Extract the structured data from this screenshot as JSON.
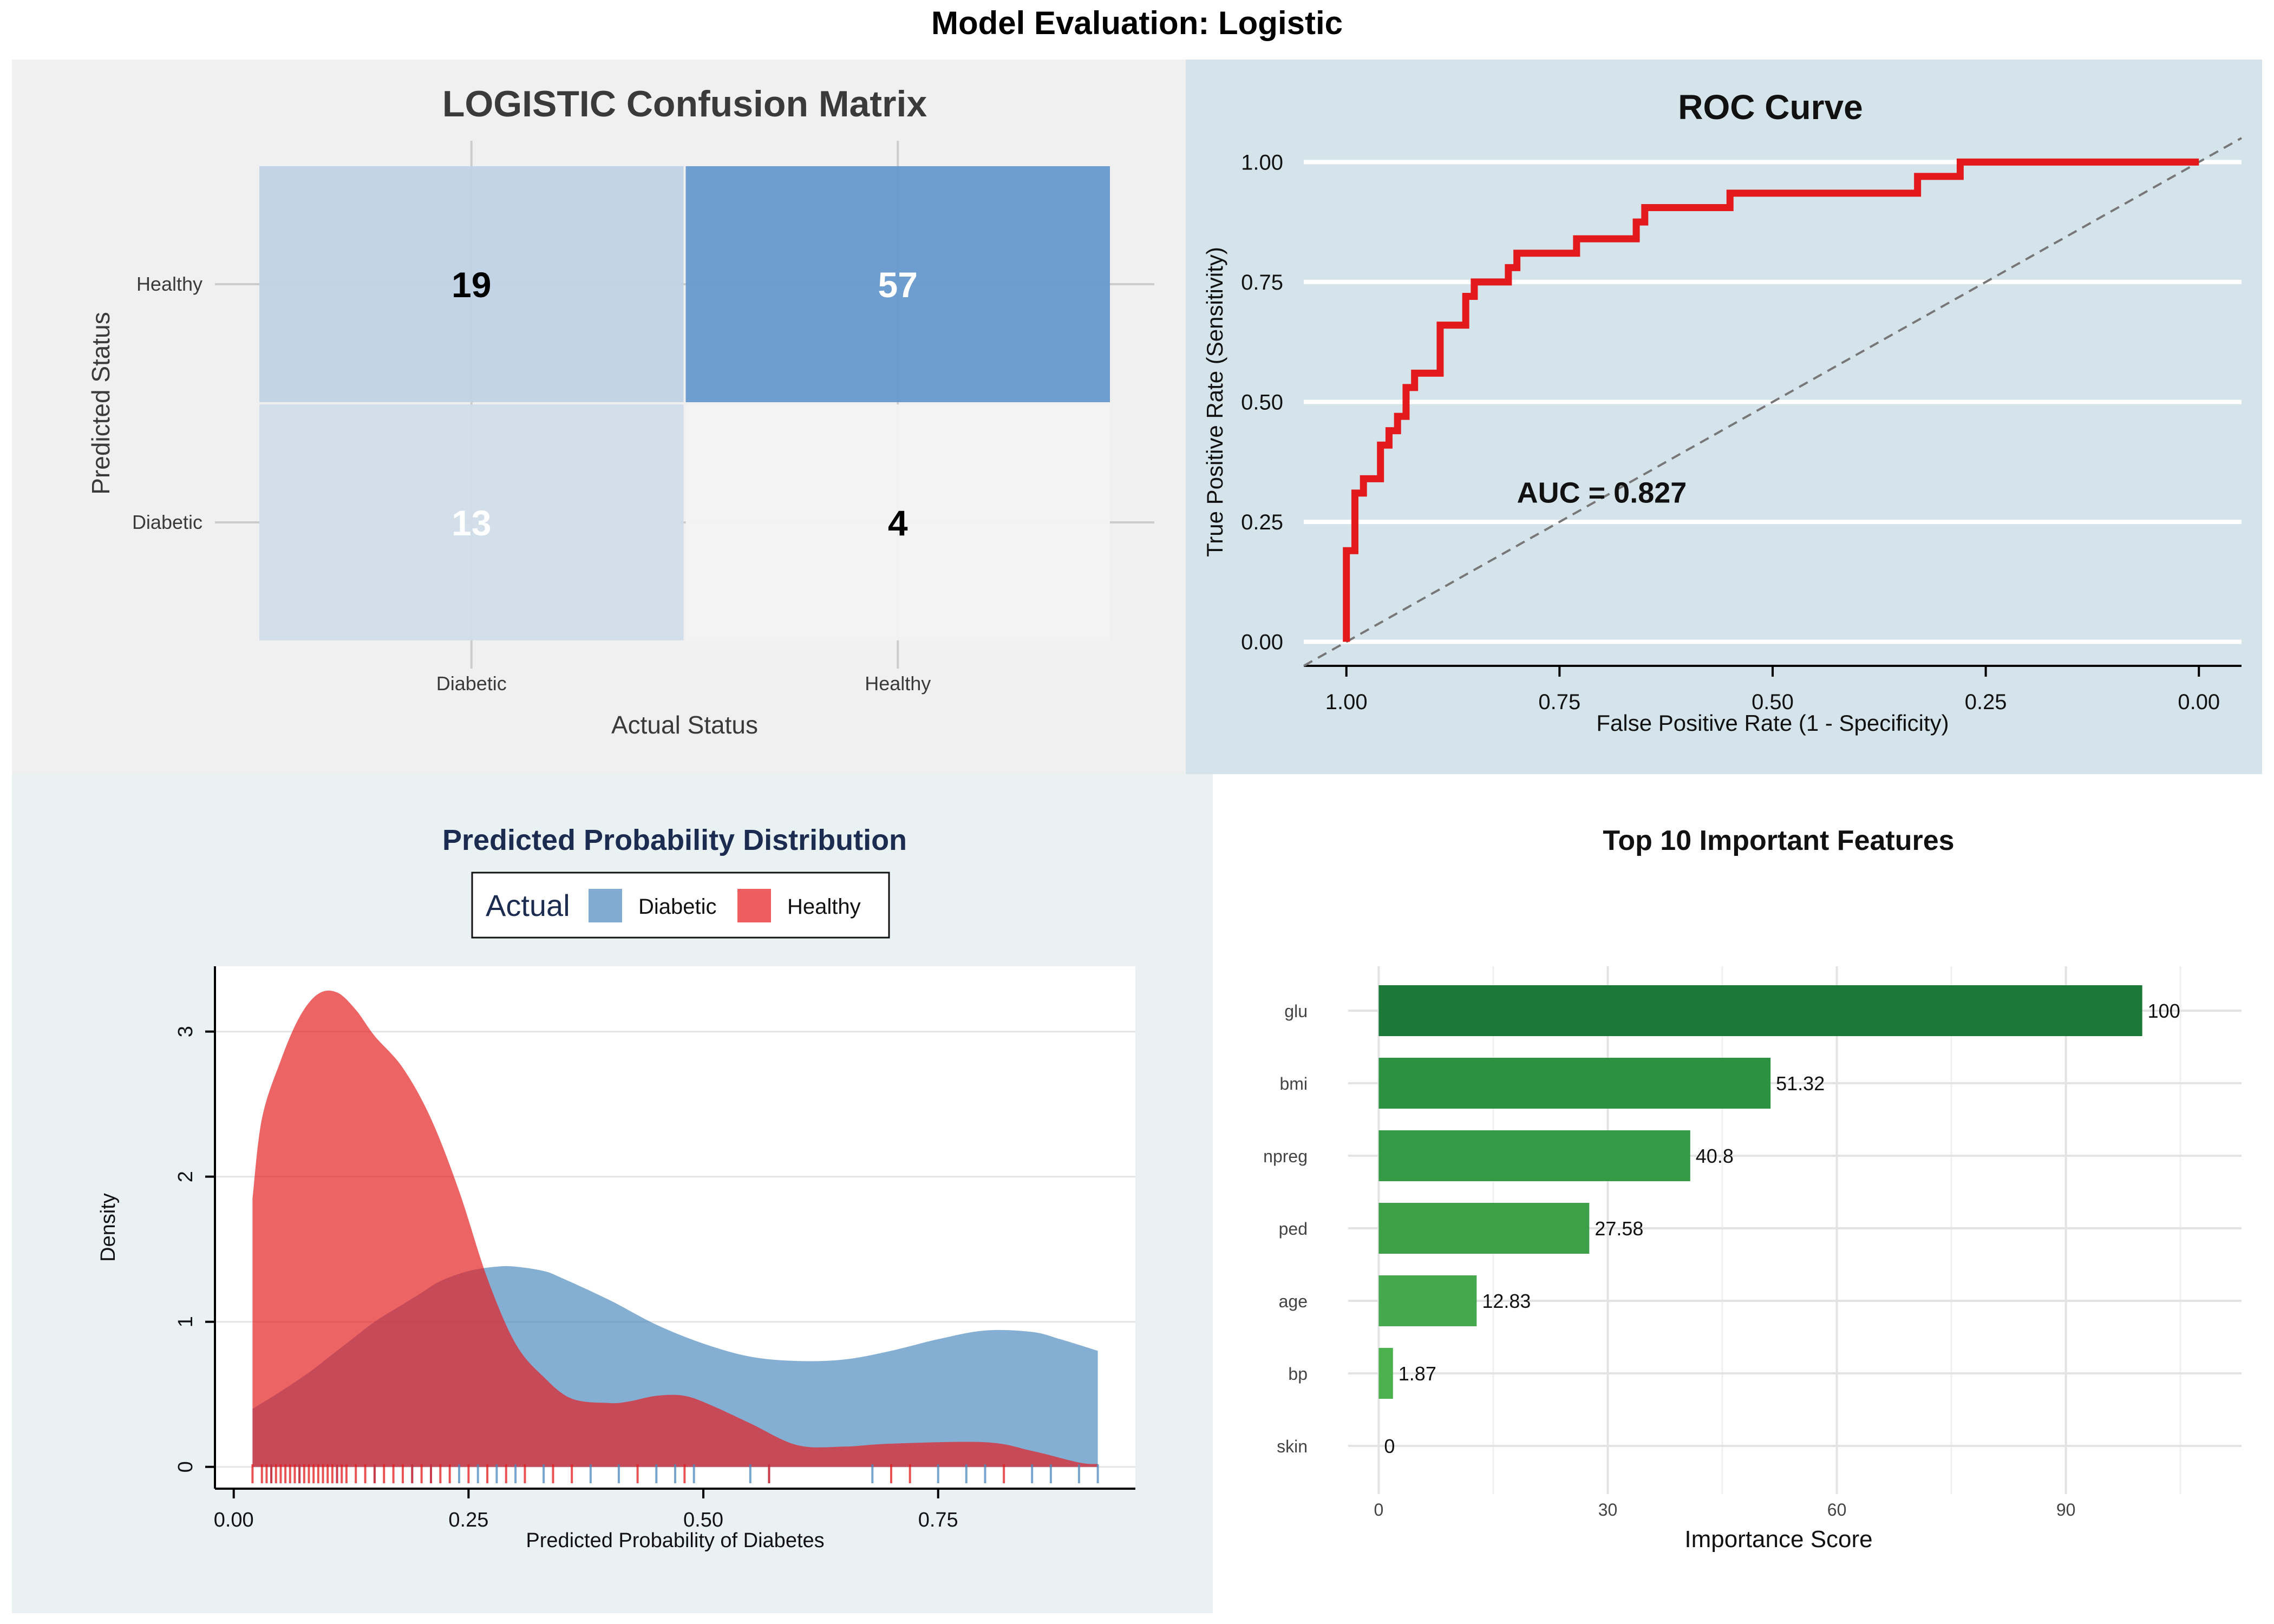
{
  "figure_title": "Model Evaluation: Logistic",
  "chart_data": [
    {
      "type": "heatmap",
      "title": "LOGISTIC Confusion Matrix",
      "xlabel": "Actual Status",
      "ylabel": "Predicted Status",
      "x_categories": [
        "Diabetic",
        "Healthy"
      ],
      "y_categories": [
        "Diabetic",
        "Healthy"
      ],
      "cells": [
        {
          "actual": "Diabetic",
          "predicted": "Healthy",
          "value": 19
        },
        {
          "actual": "Healthy",
          "predicted": "Healthy",
          "value": 57
        },
        {
          "actual": "Diabetic",
          "predicted": "Diabetic",
          "value": 13
        },
        {
          "actual": "Healthy",
          "predicted": "Diabetic",
          "value": 4
        }
      ],
      "colors": {
        "low": "#f2f2f2",
        "high": "#6699cc"
      },
      "grid": true
    },
    {
      "type": "line",
      "title": "ROC Curve",
      "xlabel": "False Positive Rate (1 - Specificity)",
      "ylabel": "True Positive Rate (Sensitivity)",
      "xlim": [
        1.05,
        -0.05
      ],
      "ylim": [
        -0.05,
        1.05
      ],
      "x_reversed": true,
      "x_ticks": [
        "1.00",
        "0.75",
        "0.50",
        "0.25",
        "0.00"
      ],
      "x_tick_values": [
        1.0,
        0.75,
        0.5,
        0.25,
        0.0
      ],
      "y_ticks": [
        "0.00",
        "0.25",
        "0.50",
        "0.75",
        "1.00"
      ],
      "y_tick_values": [
        0.0,
        0.25,
        0.5,
        0.75,
        1.0
      ],
      "annotation": "AUC = 0.827",
      "annotation_pos": {
        "x": 0.8,
        "y": 0.29
      },
      "line_color": "#e31a1c",
      "diagonal_color": "#777777",
      "grid": "horizontal",
      "points": [
        [
          1.0,
          0.0
        ],
        [
          1.0,
          0.19
        ],
        [
          0.99,
          0.19
        ],
        [
          0.99,
          0.31
        ],
        [
          0.98,
          0.31
        ],
        [
          0.98,
          0.34
        ],
        [
          0.96,
          0.34
        ],
        [
          0.96,
          0.41
        ],
        [
          0.95,
          0.41
        ],
        [
          0.95,
          0.44
        ],
        [
          0.94,
          0.44
        ],
        [
          0.94,
          0.47
        ],
        [
          0.93,
          0.47
        ],
        [
          0.93,
          0.53
        ],
        [
          0.92,
          0.53
        ],
        [
          0.92,
          0.56
        ],
        [
          0.89,
          0.56
        ],
        [
          0.89,
          0.66
        ],
        [
          0.86,
          0.66
        ],
        [
          0.86,
          0.72
        ],
        [
          0.85,
          0.72
        ],
        [
          0.85,
          0.75
        ],
        [
          0.81,
          0.75
        ],
        [
          0.81,
          0.78
        ],
        [
          0.8,
          0.78
        ],
        [
          0.8,
          0.81
        ],
        [
          0.73,
          0.81
        ],
        [
          0.73,
          0.84
        ],
        [
          0.66,
          0.84
        ],
        [
          0.66,
          0.875
        ],
        [
          0.65,
          0.875
        ],
        [
          0.65,
          0.905
        ],
        [
          0.55,
          0.905
        ],
        [
          0.55,
          0.935
        ],
        [
          0.33,
          0.935
        ],
        [
          0.33,
          0.97
        ],
        [
          0.28,
          0.97
        ],
        [
          0.28,
          1.0
        ],
        [
          0.0,
          1.0
        ]
      ]
    },
    {
      "type": "area",
      "title": "Predicted Probability Distribution",
      "xlabel": "Predicted Probability of Diabetes",
      "ylabel": "Density",
      "xlim": [
        -0.02,
        0.96
      ],
      "ylim": [
        -0.15,
        3.45
      ],
      "x_ticks": [
        "0.00",
        "0.25",
        "0.50",
        "0.75"
      ],
      "x_tick_values": [
        0.0,
        0.25,
        0.5,
        0.75
      ],
      "y_ticks": [
        "0",
        "1",
        "2",
        "3"
      ],
      "y_tick_values": [
        0,
        1,
        2,
        3
      ],
      "legend": {
        "title": "Actual",
        "position": "top"
      },
      "series": [
        {
          "name": "Diabetic",
          "color": "#4b87be",
          "x": [
            0.02,
            0.05,
            0.08,
            0.1,
            0.12,
            0.15,
            0.18,
            0.2,
            0.22,
            0.25,
            0.28,
            0.3,
            0.33,
            0.35,
            0.4,
            0.45,
            0.5,
            0.55,
            0.6,
            0.65,
            0.7,
            0.75,
            0.8,
            0.85,
            0.88,
            0.92
          ],
          "y": [
            0.4,
            0.52,
            0.65,
            0.75,
            0.85,
            1.0,
            1.12,
            1.2,
            1.28,
            1.35,
            1.38,
            1.38,
            1.35,
            1.3,
            1.15,
            0.98,
            0.85,
            0.76,
            0.73,
            0.74,
            0.8,
            0.88,
            0.94,
            0.93,
            0.88,
            0.8
          ],
          "rug": [
            0.04,
            0.07,
            0.11,
            0.15,
            0.19,
            0.21,
            0.24,
            0.26,
            0.28,
            0.3,
            0.33,
            0.38,
            0.41,
            0.45,
            0.47,
            0.49,
            0.55,
            0.57,
            0.68,
            0.75,
            0.78,
            0.8,
            0.85,
            0.87,
            0.9,
            0.92
          ]
        },
        {
          "name": "Healthy",
          "color": "#e41a1c",
          "x": [
            0.02,
            0.03,
            0.05,
            0.07,
            0.09,
            0.11,
            0.13,
            0.15,
            0.18,
            0.21,
            0.24,
            0.27,
            0.3,
            0.33,
            0.36,
            0.4,
            0.42,
            0.45,
            0.48,
            0.51,
            0.55,
            0.6,
            0.65,
            0.7,
            0.8,
            0.85,
            0.9,
            0.92
          ],
          "y": [
            1.85,
            2.4,
            2.8,
            3.1,
            3.26,
            3.27,
            3.15,
            2.97,
            2.75,
            2.4,
            1.9,
            1.3,
            0.85,
            0.62,
            0.47,
            0.44,
            0.45,
            0.49,
            0.49,
            0.42,
            0.3,
            0.15,
            0.14,
            0.16,
            0.17,
            0.11,
            0.03,
            0.02
          ],
          "rug": [
            0.02,
            0.03,
            0.035,
            0.04,
            0.045,
            0.05,
            0.055,
            0.06,
            0.065,
            0.07,
            0.075,
            0.08,
            0.085,
            0.09,
            0.095,
            0.1,
            0.105,
            0.11,
            0.115,
            0.12,
            0.13,
            0.14,
            0.15,
            0.16,
            0.17,
            0.18,
            0.19,
            0.2,
            0.21,
            0.22,
            0.23,
            0.25,
            0.27,
            0.29,
            0.31,
            0.34,
            0.36,
            0.43,
            0.48,
            0.57,
            0.7,
            0.72,
            0.82
          ]
        }
      ]
    },
    {
      "type": "bar",
      "orientation": "horizontal",
      "title": "Top 10 Important Features",
      "xlabel": "Importance Score",
      "ylabel": "",
      "xlim": [
        -4,
        113
      ],
      "x_ticks": [
        "0",
        "30",
        "60",
        "90"
      ],
      "x_tick_values": [
        0,
        30,
        60,
        90
      ],
      "categories": [
        "glu",
        "bmi",
        "npreg",
        "ped",
        "age",
        "bp",
        "skin"
      ],
      "values": [
        100,
        51.32,
        40.8,
        27.58,
        12.83,
        1.87,
        0
      ],
      "value_labels": [
        "100",
        "51.32",
        "40.8",
        "27.58",
        "12.83",
        "1.87",
        "0"
      ],
      "colors": [
        "#1b7837",
        "#2c9242",
        "#349a45",
        "#3d9f48",
        "#45a84c",
        "#4cb14f",
        "#52b755"
      ],
      "grid": true
    }
  ]
}
